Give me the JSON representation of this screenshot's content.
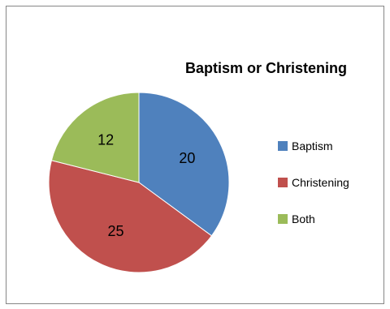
{
  "chart_data": {
    "type": "pie",
    "title": "Baptism or Christening",
    "categories": [
      "Baptism",
      "Christening",
      "Both"
    ],
    "values": [
      20,
      25,
      12
    ],
    "colors": [
      "#4F81BD",
      "#C0504D",
      "#9BBB59"
    ],
    "data_labels": [
      "20",
      "25",
      "12"
    ],
    "legend_position": "right"
  }
}
